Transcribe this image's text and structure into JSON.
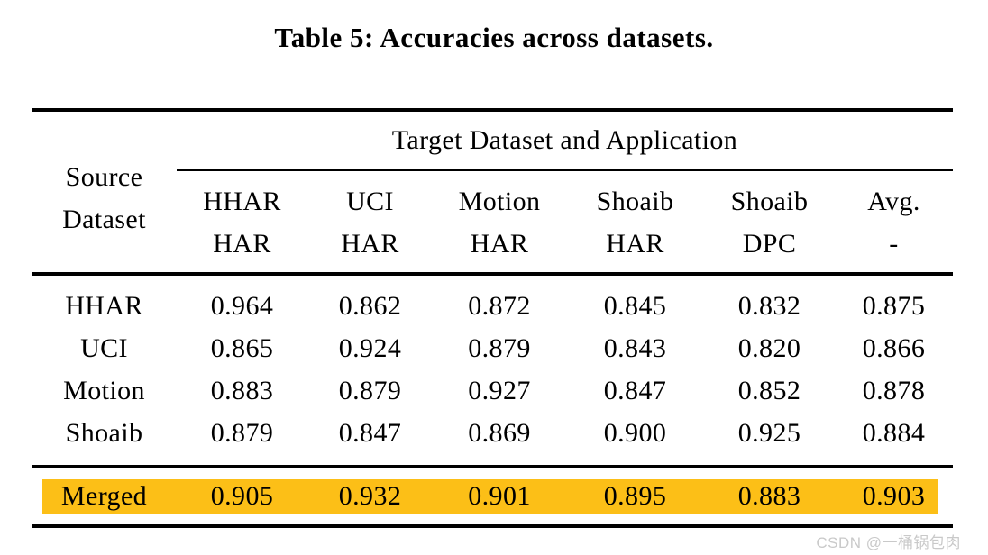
{
  "title": "Table 5: Accuracies across datasets.",
  "table": {
    "source_header": {
      "line1": "Source",
      "line2": "Dataset"
    },
    "span_header": "Target Dataset and Application",
    "columns": [
      {
        "line1": "HHAR",
        "line2": "HAR"
      },
      {
        "line1": "UCI",
        "line2": "HAR"
      },
      {
        "line1": "Motion",
        "line2": "HAR"
      },
      {
        "line1": "Shoaib",
        "line2": "HAR"
      },
      {
        "line1": "Shoaib",
        "line2": "DPC"
      },
      {
        "line1": "Avg.",
        "line2": "-"
      }
    ],
    "rows": [
      {
        "label": "HHAR",
        "values": [
          "0.964",
          "0.862",
          "0.872",
          "0.845",
          "0.832",
          "0.875"
        ]
      },
      {
        "label": "UCI",
        "values": [
          "0.865",
          "0.924",
          "0.879",
          "0.843",
          "0.820",
          "0.866"
        ]
      },
      {
        "label": "Motion",
        "values": [
          "0.883",
          "0.879",
          "0.927",
          "0.847",
          "0.852",
          "0.878"
        ]
      },
      {
        "label": "Shoaib",
        "values": [
          "0.879",
          "0.847",
          "0.869",
          "0.900",
          "0.925",
          "0.884"
        ]
      }
    ],
    "highlight_row": {
      "label": "Merged",
      "values": [
        "0.905",
        "0.932",
        "0.901",
        "0.895",
        "0.883",
        "0.903"
      ],
      "highlight_color": "#FCBF17"
    }
  },
  "colors": {
    "text": "#000000",
    "rule": "#000000",
    "highlight": "#FCBF17",
    "watermark": "#C9C9C9"
  },
  "watermark": "CSDN @一桶锅包肉"
}
